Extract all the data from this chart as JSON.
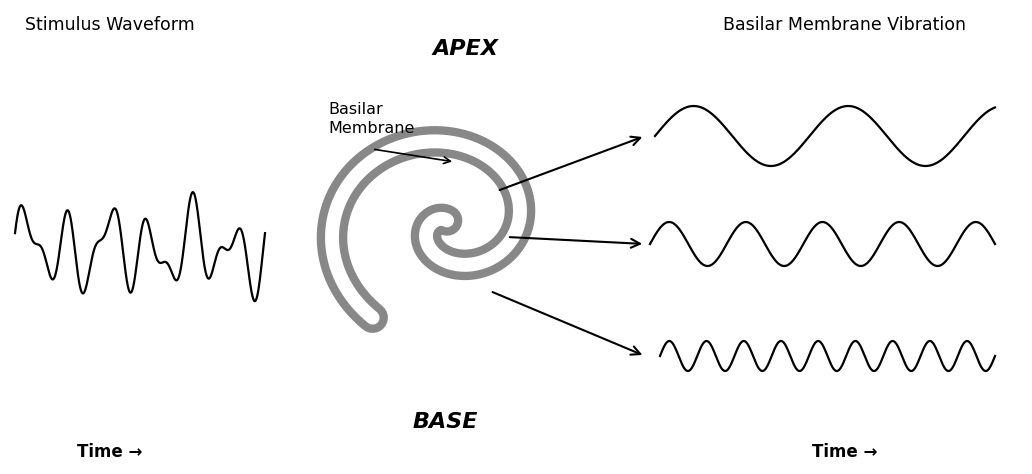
{
  "bg_color": "#ffffff",
  "title_left": "Stimulus Waveform",
  "title_right": "Basilar Membrane Vibration",
  "apex_label": "APEX",
  "base_label": "BASE",
  "basilar_membrane_label": "Basilar\nMembrane",
  "time_label": "Time →",
  "cochlea_color": "#888888",
  "wave_color": "#000000",
  "arrow_color": "#000000",
  "text_color": "#000000",
  "figsize": [
    10.32,
    4.74
  ],
  "dpi": 100
}
